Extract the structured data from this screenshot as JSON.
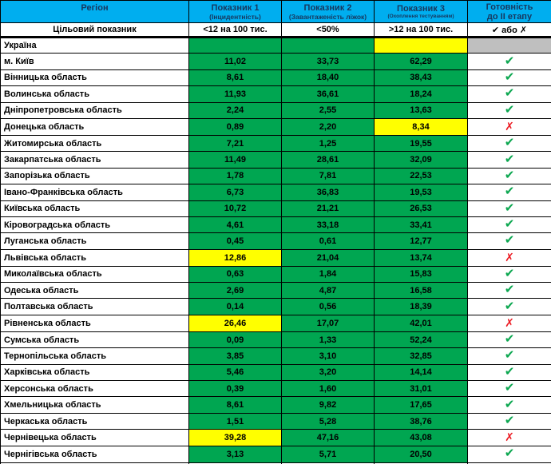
{
  "colors": {
    "header_bg": "#00AEEF",
    "header_text": "#17375E",
    "pass_green": "#00A651",
    "fail_yellow": "#FFFF00",
    "neutral_gray": "#BFBFBF",
    "check_green": "#0CA750",
    "cross_red": "#EC1C24"
  },
  "icons": {
    "check": "✔",
    "cross": "✗"
  },
  "chart_data": {
    "type": "table",
    "headers": [
      {
        "title": "Регіон",
        "subtitle": ""
      },
      {
        "title": "Показник 1",
        "subtitle": "(Інцидентність)"
      },
      {
        "title": "Показник 2",
        "subtitle": "(Завантаженість ліжок)"
      },
      {
        "title": "Показник 3",
        "subtitle": "(Охоплення тестуванням)"
      },
      {
        "title": "Готовність",
        "subtitle": "до II етапу"
      }
    ],
    "target_row": {
      "label": "Цільовий показник",
      "values": [
        "<12 на 100 тис.",
        "<50%",
        ">12 на 100 тис.",
        "✔ або ✗"
      ]
    },
    "rows": [
      {
        "region": "Україна",
        "values": [
          "",
          "",
          ""
        ],
        "cell_colors": [
          "green",
          "green",
          "yellow"
        ],
        "ready": "none",
        "ready_bg": "gray"
      },
      {
        "region": "м. Київ",
        "values": [
          "11,02",
          "33,73",
          "62,29"
        ],
        "cell_colors": [
          "green",
          "green",
          "green"
        ],
        "ready": "check"
      },
      {
        "region": "Вінницька область",
        "values": [
          "8,61",
          "18,40",
          "38,43"
        ],
        "cell_colors": [
          "green",
          "green",
          "green"
        ],
        "ready": "check"
      },
      {
        "region": "Волинська область",
        "values": [
          "11,93",
          "36,61",
          "18,24"
        ],
        "cell_colors": [
          "green",
          "green",
          "green"
        ],
        "ready": "check"
      },
      {
        "region": "Дніпропетровська область",
        "values": [
          "2,24",
          "2,55",
          "13,63"
        ],
        "cell_colors": [
          "green",
          "green",
          "green"
        ],
        "ready": "check"
      },
      {
        "region": "Донецька область",
        "values": [
          "0,89",
          "2,20",
          "8,34"
        ],
        "cell_colors": [
          "green",
          "green",
          "yellow"
        ],
        "ready": "cross"
      },
      {
        "region": "Житомирська область",
        "values": [
          "7,21",
          "1,25",
          "19,55"
        ],
        "cell_colors": [
          "green",
          "green",
          "green"
        ],
        "ready": "check"
      },
      {
        "region": "Закарпатська область",
        "values": [
          "11,49",
          "28,61",
          "32,09"
        ],
        "cell_colors": [
          "green",
          "green",
          "green"
        ],
        "ready": "check"
      },
      {
        "region": "Запорізька область",
        "values": [
          "1,78",
          "7,81",
          "22,53"
        ],
        "cell_colors": [
          "green",
          "green",
          "green"
        ],
        "ready": "check"
      },
      {
        "region": "Івано-Франківська область",
        "values": [
          "6,73",
          "36,83",
          "19,53"
        ],
        "cell_colors": [
          "green",
          "green",
          "green"
        ],
        "ready": "check"
      },
      {
        "region": "Київська область",
        "values": [
          "10,72",
          "21,21",
          "26,53"
        ],
        "cell_colors": [
          "green",
          "green",
          "green"
        ],
        "ready": "check"
      },
      {
        "region": "Кіровоградська область",
        "values": [
          "4,61",
          "33,18",
          "33,41"
        ],
        "cell_colors": [
          "green",
          "green",
          "green"
        ],
        "ready": "check"
      },
      {
        "region": "Луганська область",
        "values": [
          "0,45",
          "0,61",
          "12,77"
        ],
        "cell_colors": [
          "green",
          "green",
          "green"
        ],
        "ready": "check"
      },
      {
        "region": "Львівська область",
        "values": [
          "12,86",
          "21,04",
          "13,74"
        ],
        "cell_colors": [
          "yellow",
          "green",
          "green"
        ],
        "ready": "cross"
      },
      {
        "region": "Миколаївська область",
        "values": [
          "0,63",
          "1,84",
          "15,83"
        ],
        "cell_colors": [
          "green",
          "green",
          "green"
        ],
        "ready": "check"
      },
      {
        "region": "Одеська область",
        "values": [
          "2,69",
          "4,87",
          "16,58"
        ],
        "cell_colors": [
          "green",
          "green",
          "green"
        ],
        "ready": "check"
      },
      {
        "region": "Полтавська область",
        "values": [
          "0,14",
          "0,56",
          "18,39"
        ],
        "cell_colors": [
          "green",
          "green",
          "green"
        ],
        "ready": "check"
      },
      {
        "region": "Рівненська область",
        "values": [
          "26,46",
          "17,07",
          "42,01"
        ],
        "cell_colors": [
          "yellow",
          "green",
          "green"
        ],
        "ready": "cross"
      },
      {
        "region": "Сумська область",
        "values": [
          "0,09",
          "1,33",
          "52,24"
        ],
        "cell_colors": [
          "green",
          "green",
          "green"
        ],
        "ready": "check"
      },
      {
        "region": "Тернопільська область",
        "values": [
          "3,85",
          "3,10",
          "32,85"
        ],
        "cell_colors": [
          "green",
          "green",
          "green"
        ],
        "ready": "check"
      },
      {
        "region": "Харківська область",
        "values": [
          "5,46",
          "3,20",
          "14,14"
        ],
        "cell_colors": [
          "green",
          "green",
          "green"
        ],
        "ready": "check"
      },
      {
        "region": "Херсонська область",
        "values": [
          "0,39",
          "1,60",
          "31,01"
        ],
        "cell_colors": [
          "green",
          "green",
          "green"
        ],
        "ready": "check"
      },
      {
        "region": "Хмельницька область",
        "values": [
          "8,61",
          "9,82",
          "17,65"
        ],
        "cell_colors": [
          "green",
          "green",
          "green"
        ],
        "ready": "check"
      },
      {
        "region": "Черкаська область",
        "values": [
          "1,51",
          "5,28",
          "38,76"
        ],
        "cell_colors": [
          "green",
          "green",
          "green"
        ],
        "ready": "check"
      },
      {
        "region": "Чернівецька область",
        "values": [
          "39,28",
          "47,16",
          "43,08"
        ],
        "cell_colors": [
          "yellow",
          "green",
          "green"
        ],
        "ready": "cross"
      },
      {
        "region": "Чернігівська область",
        "values": [
          "3,13",
          "5,71",
          "20,50"
        ],
        "cell_colors": [
          "green",
          "green",
          "green"
        ],
        "ready": "check"
      }
    ]
  }
}
